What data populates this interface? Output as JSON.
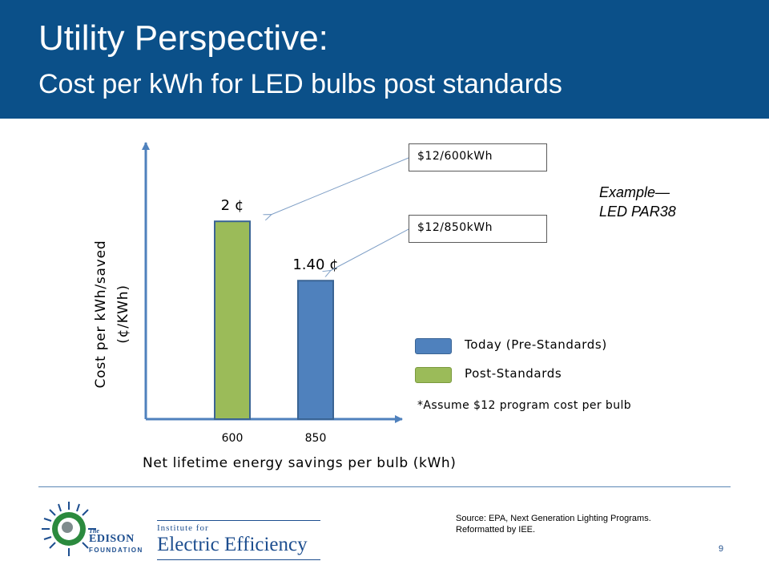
{
  "header": {
    "title": "Utility Perspective:",
    "subtitle": "Cost per kWh for LED bulbs post standards",
    "background_color": "#0b5089"
  },
  "chart_data": {
    "type": "bar",
    "categories": [
      "600",
      "850"
    ],
    "values": [
      2,
      1.4
    ],
    "bar_colors": [
      "#9bbb59",
      "#4f81bd"
    ],
    "bar_labels": [
      "2 ¢",
      "1.40 ¢"
    ],
    "xlabel": "Net lifetime energy savings per bulb (kWh)",
    "ylabel_lines": [
      "Cost per kWh/saved",
      "(¢/KWh)"
    ],
    "ylim": [
      0,
      2.6
    ],
    "grid": false,
    "legend": [
      {
        "label": "Today (Pre-Standards)",
        "color": "#4f81bd"
      },
      {
        "label": "Post-Standards",
        "color": "#9bbb59"
      }
    ],
    "legend_position": "right",
    "callouts": [
      "$12/600kWh",
      "$12/850kWh"
    ],
    "annotation_lines": [
      "Example—",
      "LED PAR38"
    ],
    "footnote": "*Assume $12 program cost per bulb"
  },
  "footer": {
    "source_lines": [
      "Source: EPA, Next Generation Lighting Programs.",
      "Reformatted by IEE."
    ],
    "page_number": "9",
    "logo_the": "The",
    "logo_edison": "EDISON",
    "logo_foundation": "FOUNDATION",
    "logo_institute": "Institute for",
    "logo_efficiency": "Electric Efficiency"
  }
}
